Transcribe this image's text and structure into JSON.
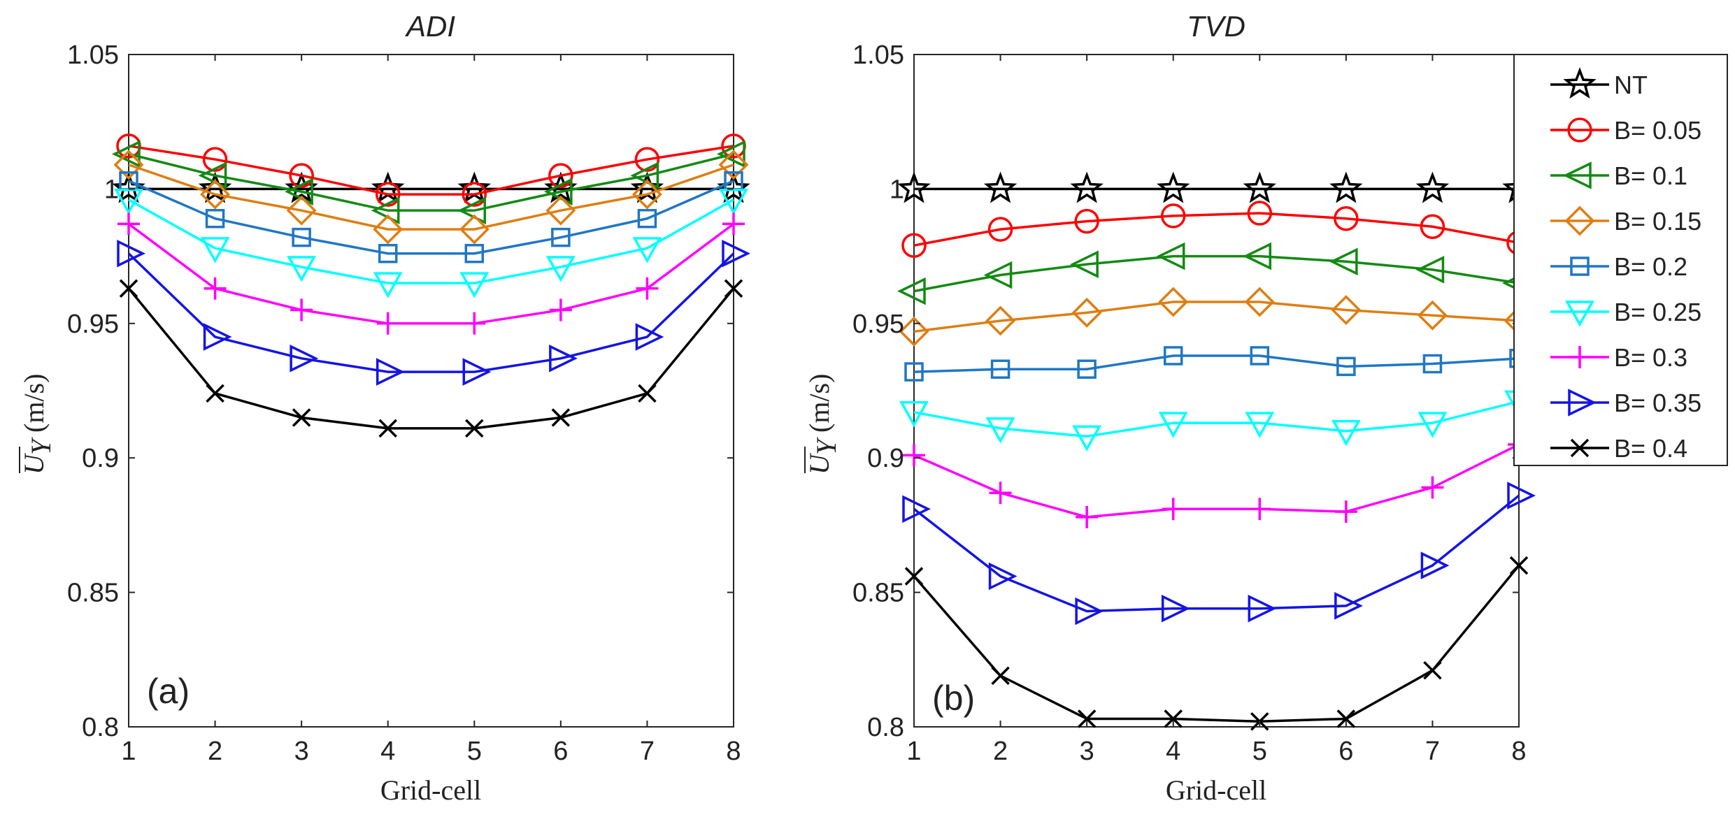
{
  "chart_data": [
    {
      "type": "line",
      "title": "ADI",
      "panel_label": "(a)",
      "xlabel": "Grid-cell",
      "ylabel": "(m/s)",
      "ylabel_symbol": "U",
      "ylabel_subscript": "Y",
      "xlim": [
        1,
        8
      ],
      "ylim": [
        0.8,
        1.05
      ],
      "x": [
        1,
        2,
        3,
        4,
        5,
        6,
        7,
        8
      ],
      "xticks": [
        "1",
        "2",
        "3",
        "4",
        "5",
        "6",
        "7",
        "8"
      ],
      "yticks": [
        {
          "value": 0.8,
          "label": "0.8"
        },
        {
          "value": 0.85,
          "label": "0.85"
        },
        {
          "value": 0.9,
          "label": "0.9"
        },
        {
          "value": 0.95,
          "label": "0.95"
        },
        {
          "value": 1.0,
          "label": "1"
        },
        {
          "value": 1.05,
          "label": "1.05"
        }
      ],
      "grid": false,
      "series": [
        {
          "name": "NT",
          "values": [
            1.0,
            1.0,
            1.0,
            1.0,
            1.0,
            1.0,
            1.0,
            1.0
          ]
        },
        {
          "name": "B= 0.05",
          "values": [
            1.016,
            1.011,
            1.005,
            0.998,
            0.998,
            1.005,
            1.011,
            1.016
          ]
        },
        {
          "name": "B= 0.1",
          "values": [
            1.013,
            1.005,
            0.999,
            0.992,
            0.992,
            0.999,
            1.005,
            1.013
          ]
        },
        {
          "name": "B= 0.15",
          "values": [
            1.009,
            0.998,
            0.992,
            0.985,
            0.985,
            0.992,
            0.998,
            1.009
          ]
        },
        {
          "name": "B= 0.2",
          "values": [
            1.003,
            0.989,
            0.982,
            0.976,
            0.976,
            0.982,
            0.989,
            1.003
          ]
        },
        {
          "name": "B= 0.25",
          "values": [
            0.996,
            0.978,
            0.971,
            0.965,
            0.965,
            0.971,
            0.978,
            0.996
          ]
        },
        {
          "name": "B= 0.3",
          "values": [
            0.987,
            0.963,
            0.955,
            0.95,
            0.95,
            0.955,
            0.963,
            0.987
          ]
        },
        {
          "name": "B= 0.35",
          "values": [
            0.976,
            0.945,
            0.937,
            0.932,
            0.932,
            0.937,
            0.945,
            0.976
          ]
        },
        {
          "name": "B= 0.4",
          "values": [
            0.963,
            0.924,
            0.915,
            0.911,
            0.911,
            0.915,
            0.924,
            0.963
          ]
        }
      ]
    },
    {
      "type": "line",
      "title": "TVD",
      "panel_label": "(b)",
      "xlabel": "Grid-cell",
      "ylabel": "(m/s)",
      "ylabel_symbol": "U",
      "ylabel_subscript": "Y",
      "xlim": [
        1,
        8
      ],
      "ylim": [
        0.8,
        1.05
      ],
      "x": [
        1,
        2,
        3,
        4,
        5,
        6,
        7,
        8
      ],
      "xticks": [
        "1",
        "2",
        "3",
        "4",
        "5",
        "6",
        "7",
        "8"
      ],
      "yticks": [
        {
          "value": 0.8,
          "label": "0.8"
        },
        {
          "value": 0.85,
          "label": "0.85"
        },
        {
          "value": 0.9,
          "label": "0.9"
        },
        {
          "value": 0.95,
          "label": "0.95"
        },
        {
          "value": 1.0,
          "label": "1"
        },
        {
          "value": 1.05,
          "label": "1.05"
        }
      ],
      "grid": false,
      "legend_position": "outside-right",
      "series": [
        {
          "name": "NT",
          "values": [
            1.0,
            1.0,
            1.0,
            1.0,
            1.0,
            1.0,
            1.0,
            1.0
          ]
        },
        {
          "name": "B= 0.05",
          "values": [
            0.979,
            0.985,
            0.988,
            0.99,
            0.991,
            0.989,
            0.986,
            0.98
          ]
        },
        {
          "name": "B= 0.1",
          "values": [
            0.962,
            0.968,
            0.972,
            0.975,
            0.975,
            0.973,
            0.97,
            0.965
          ]
        },
        {
          "name": "B= 0.15",
          "values": [
            0.947,
            0.951,
            0.954,
            0.958,
            0.958,
            0.955,
            0.953,
            0.951
          ]
        },
        {
          "name": "B= 0.2",
          "values": [
            0.932,
            0.933,
            0.933,
            0.938,
            0.938,
            0.934,
            0.935,
            0.937
          ]
        },
        {
          "name": "B= 0.25",
          "values": [
            0.917,
            0.911,
            0.908,
            0.913,
            0.913,
            0.91,
            0.913,
            0.921
          ]
        },
        {
          "name": "B= 0.3",
          "values": [
            0.901,
            0.887,
            0.878,
            0.881,
            0.881,
            0.88,
            0.889,
            0.905
          ]
        },
        {
          "name": "B= 0.35",
          "values": [
            0.881,
            0.856,
            0.843,
            0.844,
            0.844,
            0.845,
            0.86,
            0.886
          ]
        },
        {
          "name": "B= 0.4",
          "values": [
            0.856,
            0.819,
            0.803,
            0.803,
            0.802,
            0.803,
            0.821,
            0.86
          ]
        }
      ]
    }
  ],
  "legend": {
    "items": [
      {
        "label": "NT",
        "color": "#000000",
        "marker": "star-icon"
      },
      {
        "label": "B= 0.05",
        "color": "#ff0000",
        "marker": "circle-icon"
      },
      {
        "label": "B= 0.1",
        "color": "#138a13",
        "marker": "triangle-left-icon"
      },
      {
        "label": "B= 0.15",
        "color": "#de7e12",
        "marker": "diamond-icon"
      },
      {
        "label": "B= 0.2",
        "color": "#1f77c4",
        "marker": "square-icon"
      },
      {
        "label": "B= 0.25",
        "color": "#00ffff",
        "marker": "triangle-down-icon"
      },
      {
        "label": "B= 0.3",
        "color": "#ff00ff",
        "marker": "plus-icon"
      },
      {
        "label": "B= 0.35",
        "color": "#1414e6",
        "marker": "triangle-right-icon"
      },
      {
        "label": "B= 0.4",
        "color": "#000000",
        "marker": "cross-icon"
      }
    ]
  }
}
